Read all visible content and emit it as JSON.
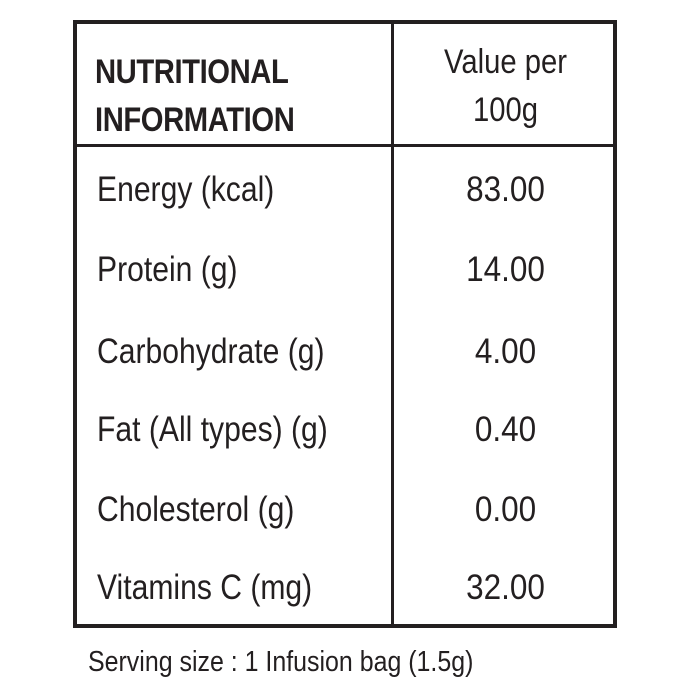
{
  "table": {
    "header": {
      "nutrient_line1": "NUTRITIONAL",
      "nutrient_line2": "INFORMATION",
      "value_line1": "Value per",
      "value_line2": "100g"
    },
    "rows": [
      {
        "name": "Energy (kcal)",
        "value": "83.00"
      },
      {
        "name": "Protein (g)",
        "value": "14.00"
      },
      {
        "name": "Carbohydrate (g)",
        "value": "4.00"
      },
      {
        "name": "Fat (All types) (g)",
        "value": "0.40"
      },
      {
        "name": "Cholesterol (g)",
        "value": "0.00"
      },
      {
        "name": "Vitamins C (mg)",
        "value": "32.00"
      }
    ]
  },
  "footer": {
    "serving_size": "Serving size : 1 Infusion bag (1.5g)"
  }
}
